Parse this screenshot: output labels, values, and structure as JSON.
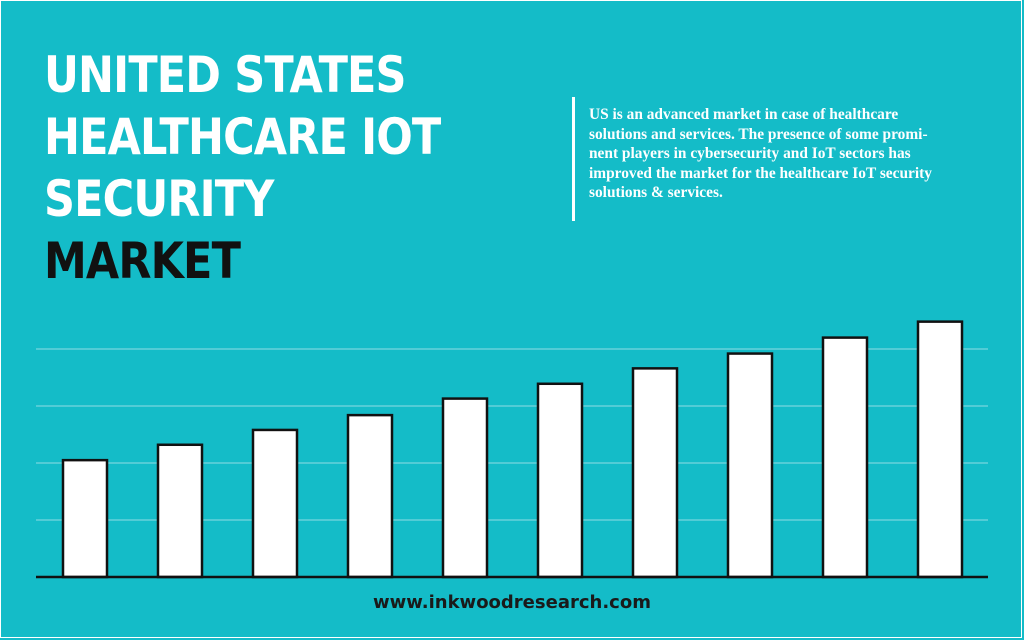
{
  "title": {
    "line1": "UNITED STATES",
    "line2": "HEALTHCARE IOT",
    "line3": "SECURITY",
    "line4": "MARKET"
  },
  "description": {
    "lines": [
      "US is an advanced market in case of healthcare",
      "solutions and services. The presence of some promi-",
      "nent players in cybersecurity and IoT sectors has",
      "improved the market for the healthcare IoT security",
      "solutions & services."
    ]
  },
  "footer": {
    "url": "www.inkwoodresearch.com"
  },
  "colors": {
    "background": "#14bcc8",
    "bar_fill": "#ffffff",
    "bar_outline": "#111111",
    "gridline": "#8fdde3"
  },
  "chart_data": {
    "type": "bar",
    "categories": [
      "",
      "",
      "",
      "",
      "",
      "",
      "",
      "",
      "",
      ""
    ],
    "values": [
      20.5,
      23.2,
      25.8,
      28.4,
      31.3,
      33.9,
      36.6,
      39.2,
      42.0,
      44.8
    ],
    "ylim": [
      0,
      50
    ],
    "grid": true,
    "gridlines_at": [
      10,
      20,
      30,
      40
    ],
    "title": "",
    "xlabel": "",
    "ylabel": ""
  }
}
